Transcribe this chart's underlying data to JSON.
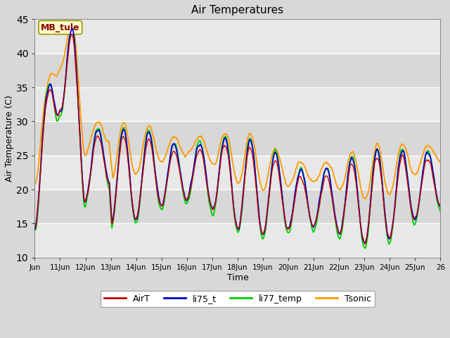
{
  "title": "Air Temperatures",
  "xlabel": "Time",
  "ylabel": "Air Temperature (C)",
  "ylim": [
    10,
    45
  ],
  "xlim": [
    0,
    16
  ],
  "tick_labels": [
    "Jun",
    "11Jun",
    "12Jun",
    "13Jun",
    "14Jun",
    "15Jun",
    "16Jun",
    "17Jun",
    "18Jun",
    "19Jun",
    "20Jun",
    "21Jun",
    "22Jun",
    "23Jun",
    "24Jun",
    "25Jun",
    "26"
  ],
  "yticks": [
    10,
    15,
    20,
    25,
    30,
    35,
    40,
    45
  ],
  "colors": {
    "AirT": "#cc0000",
    "li75_t": "#0000cc",
    "li77_temp": "#00cc00",
    "Tsonic": "#ff9900"
  },
  "annotation_text": "MB_tule",
  "annotation_color": "#8b0000",
  "annotation_bg": "#ffffcc",
  "bg_light": "#f0f0f0",
  "bg_dark": "#e0e0e0",
  "grid_color": "#ffffff",
  "legend_labels": [
    "AirT",
    "li75_t",
    "li77_temp",
    "Tsonic"
  ],
  "figsize": [
    6.4,
    4.8
  ],
  "dpi": 100
}
